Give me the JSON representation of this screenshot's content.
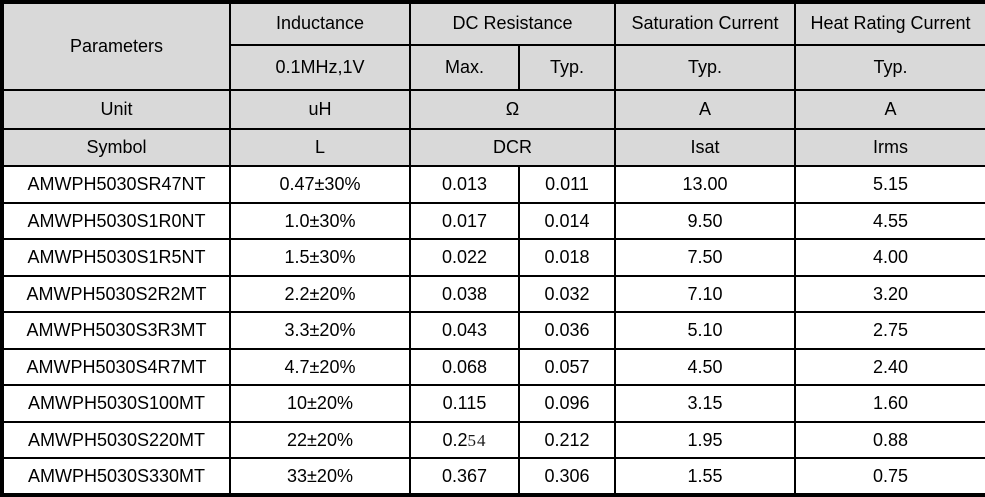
{
  "table": {
    "header": {
      "parameters": "Parameters",
      "inductance": "Inductance",
      "inductance_condition": "0.1MHz,1V",
      "dc_resistance": "DC Resistance",
      "dcr_max": "Max.",
      "dcr_typ": "Typ.",
      "saturation_current": "Saturation Current",
      "saturation_typ": "Typ.",
      "heat_rating_current": "Heat Rating Current",
      "heat_typ": "Typ."
    },
    "unit_row": {
      "label": "Unit",
      "inductance": "uH",
      "dcr": "Ω",
      "isat": "A",
      "irms": "A"
    },
    "symbol_row": {
      "label": "Symbol",
      "inductance": "L",
      "dcr": "DCR",
      "isat": "Isat",
      "irms": "Irms"
    },
    "rows": [
      {
        "part": "AMWPH5030SR47NT",
        "inductance": "0.47±30%",
        "dcr_max": "0.013",
        "dcr_typ": "0.011",
        "isat": "13.00",
        "irms": "5.15"
      },
      {
        "part": "AMWPH5030S1R0NT",
        "inductance": "1.0±30%",
        "dcr_max": "0.017",
        "dcr_typ": "0.014",
        "isat": "9.50",
        "irms": "4.55"
      },
      {
        "part": "AMWPH5030S1R5NT",
        "inductance": "1.5±30%",
        "dcr_max": "0.022",
        "dcr_typ": "0.018",
        "isat": "7.50",
        "irms": "4.00",
        "dcr_align_left": true
      },
      {
        "part": "AMWPH5030S2R2MT",
        "inductance": "2.2±20%",
        "dcr_max": "0.038",
        "dcr_typ": "0.032",
        "isat": "7.10",
        "irms": "3.20"
      },
      {
        "part": "AMWPH5030S3R3MT",
        "inductance": "3.3±20%",
        "dcr_max": "0.043",
        "dcr_typ": "0.036",
        "isat": "5.10",
        "irms": "2.75"
      },
      {
        "part": "AMWPH5030S4R7MT",
        "inductance": "4.7±20%",
        "dcr_max": "0.068",
        "dcr_typ": "0.057",
        "isat": "4.50",
        "irms": "2.40"
      },
      {
        "part": "AMWPH5030S100MT",
        "inductance": "10±20%",
        "dcr_max": "0.115",
        "dcr_typ": "0.096",
        "isat": "3.15",
        "irms": "1.60"
      },
      {
        "part": "AMWPH5030S220MT",
        "inductance": "22±20%",
        "dcr_max": "0.254",
        "dcr_typ": "0.212",
        "isat": "1.95",
        "irms": "0.88",
        "dcr_max_serif_tail": 2
      },
      {
        "part": "AMWPH5030S330MT",
        "inductance": "33±20%",
        "dcr_max": "0.367",
        "dcr_typ": "0.306",
        "isat": "1.55",
        "irms": "0.75"
      }
    ],
    "colors": {
      "header_bg": "#d9d9d9",
      "border": "#000000",
      "row_bg": "#ffffff",
      "text": "#000000"
    }
  }
}
